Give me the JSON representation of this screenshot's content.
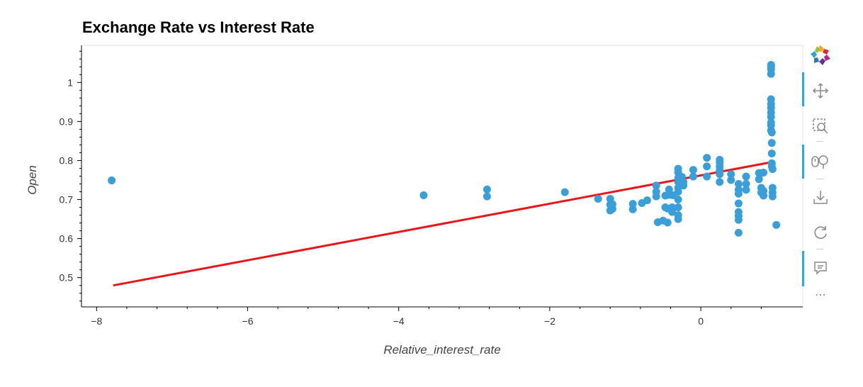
{
  "chart_data": {
    "type": "scatter",
    "title": "Exchange Rate vs Interest Rate",
    "xlabel": "Relative_interest_rate",
    "ylabel": "Open",
    "xlim": [
      -8.2,
      1.35
    ],
    "ylim": [
      0.425,
      1.095
    ],
    "x_ticks": [
      -8,
      -6,
      -4,
      -2,
      0
    ],
    "x_tick_labels": [
      "−8",
      "−6",
      "−4",
      "−2",
      "0"
    ],
    "y_ticks": [
      0.5,
      0.6,
      0.7,
      0.8,
      0.9,
      1
    ],
    "y_tick_labels": [
      "0.5",
      "0.6",
      "0.7",
      "0.8",
      "0.9",
      "1"
    ],
    "grid": false,
    "colors": {
      "points": "#3a9fd8",
      "trend": "#e8151b"
    },
    "series": [
      {
        "kind": "points",
        "x": [
          -7.8,
          -3.67,
          -2.83,
          -2.83,
          -1.8,
          -1.36,
          -1.2,
          -1.2,
          -1.2,
          -1.17,
          -1.17,
          -0.9,
          -0.9,
          -0.78,
          -0.71,
          -0.59,
          -0.59,
          -0.59,
          -0.57,
          -0.5,
          -0.47,
          -0.47,
          -0.44,
          -0.44,
          -0.42,
          -0.42,
          -0.38,
          -0.38,
          -0.37,
          -0.3,
          -0.3,
          -0.3,
          -0.3,
          -0.3,
          -0.3,
          -0.3,
          -0.3,
          -0.3,
          -0.3,
          -0.29,
          -0.27,
          -0.27,
          -0.25,
          -0.23,
          -0.23,
          -0.1,
          -0.1,
          0.08,
          0.08,
          0.08,
          0.25,
          0.25,
          0.25,
          0.25,
          0.25,
          0.25,
          0.4,
          0.4,
          0.5,
          0.5,
          0.5,
          0.5,
          0.5,
          0.5,
          0.5,
          0.5,
          0.6,
          0.6,
          0.6,
          0.77,
          0.77,
          0.8,
          0.8,
          0.8,
          0.83,
          0.83,
          0.83,
          0.93,
          0.93,
          0.93,
          0.93,
          0.93,
          0.93,
          0.93,
          0.93,
          0.93,
          0.93,
          0.93,
          0.93,
          0.94,
          0.94,
          0.94,
          0.94,
          0.94,
          0.95,
          0.95,
          0.95,
          0.95,
          1.0
        ],
        "y": [
          0.749,
          0.711,
          0.726,
          0.708,
          0.719,
          0.702,
          0.702,
          0.687,
          0.672,
          0.688,
          0.676,
          0.689,
          0.675,
          0.691,
          0.698,
          0.736,
          0.72,
          0.708,
          0.642,
          0.646,
          0.71,
          0.68,
          0.677,
          0.641,
          0.726,
          0.712,
          0.68,
          0.668,
          0.711,
          0.779,
          0.77,
          0.755,
          0.745,
          0.73,
          0.72,
          0.7,
          0.68,
          0.66,
          0.65,
          0.759,
          0.75,
          0.74,
          0.758,
          0.745,
          0.736,
          0.776,
          0.759,
          0.807,
          0.785,
          0.759,
          0.802,
          0.795,
          0.785,
          0.775,
          0.765,
          0.745,
          0.765,
          0.75,
          0.74,
          0.725,
          0.715,
          0.69,
          0.668,
          0.658,
          0.648,
          0.615,
          0.759,
          0.74,
          0.725,
          0.768,
          0.752,
          0.768,
          0.73,
          0.718,
          0.769,
          0.722,
          0.71,
          1.045,
          1.04,
          1.034,
          1.022,
          0.957,
          0.945,
          0.935,
          0.923,
          0.912,
          0.897,
          0.89,
          0.877,
          0.872,
          0.845,
          0.818,
          0.793,
          0.785,
          0.778,
          0.73,
          0.718,
          0.708,
          0.635
        ]
      },
      {
        "kind": "line",
        "x": [
          -7.78,
          0.97
        ],
        "y": [
          0.48,
          0.797
        ]
      }
    ]
  },
  "toolbar": {
    "tools": [
      {
        "name": "bokeh-logo-icon",
        "interactable": true
      },
      {
        "name": "pan-tool-icon",
        "active": true,
        "interactable": true
      },
      {
        "name": "box-zoom-tool-icon",
        "active": false,
        "interactable": true
      },
      {
        "name": "wheel-zoom-tool-icon",
        "active": true,
        "interactable": true
      },
      {
        "name": "save-tool-icon",
        "active": false,
        "interactable": true
      },
      {
        "name": "reset-tool-icon",
        "active": false,
        "interactable": true
      },
      {
        "name": "hover-tool-icon",
        "active": true,
        "interactable": true
      },
      {
        "name": "more-tools-icon",
        "interactable": true
      }
    ],
    "more_label": "⋯"
  }
}
